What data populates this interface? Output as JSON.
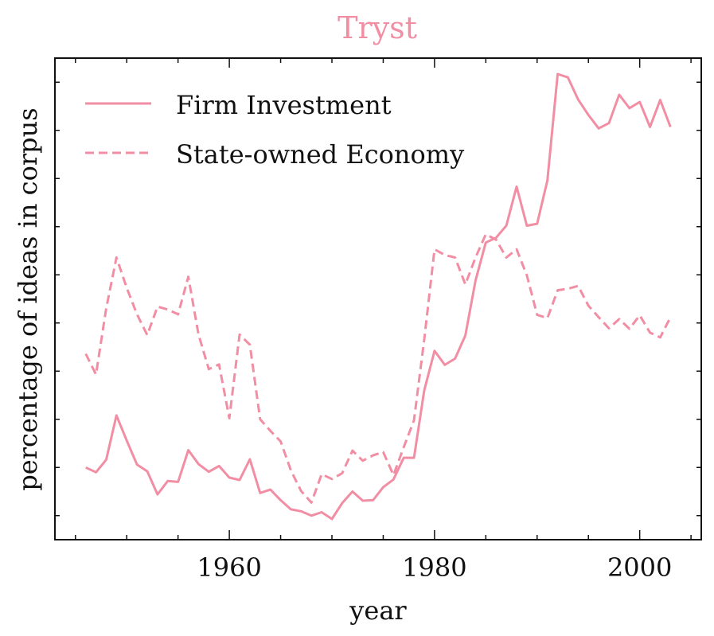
{
  "chart_data": {
    "type": "line",
    "title": "Tryst",
    "xlabel": "year",
    "ylabel": "percentage of ideas in corpus",
    "xlim": [
      1943,
      2006
    ],
    "ylim": [
      0,
      100
    ],
    "x_ticks": [
      1960,
      1980,
      2000
    ],
    "y_ticks_labeled": false,
    "grid": false,
    "legend_position": "top-left",
    "color": "#f28ea4",
    "x": [
      1946,
      1947,
      1948,
      1949,
      1950,
      1951,
      1952,
      1953,
      1954,
      1955,
      1956,
      1957,
      1958,
      1959,
      1960,
      1961,
      1962,
      1963,
      1964,
      1965,
      1966,
      1967,
      1968,
      1969,
      1970,
      1971,
      1972,
      1973,
      1974,
      1975,
      1976,
      1977,
      1978,
      1979,
      1980,
      1981,
      1982,
      1983,
      1984,
      1985,
      1986,
      1987,
      1988,
      1989,
      1990,
      1991,
      1992,
      1993,
      1994,
      1995,
      1996,
      1997,
      1998,
      1999,
      2000,
      2001,
      2002,
      2003
    ],
    "series": [
      {
        "name": "Firm Investment",
        "style": "solid",
        "values": [
          15.0,
          14.0,
          16.6,
          25.8,
          20.6,
          15.6,
          14.2,
          9.4,
          12.2,
          12.0,
          18.6,
          15.7,
          14.1,
          15.3,
          12.9,
          12.4,
          16.7,
          9.7,
          10.4,
          8.2,
          6.3,
          5.9,
          5.0,
          5.7,
          4.3,
          7.6,
          10.0,
          8.1,
          8.2,
          10.9,
          12.5,
          17.0,
          17.0,
          31.0,
          39.2,
          36.3,
          37.6,
          42.4,
          53.8,
          61.7,
          62.7,
          65.2,
          73.3,
          65.2,
          65.6,
          74.6,
          96.7,
          96.0,
          91.4,
          88.2,
          85.4,
          86.5,
          92.4,
          89.6,
          90.9,
          85.7,
          91.3,
          85.7
        ]
      },
      {
        "name": "State-owned Economy",
        "style": "dashed",
        "values": [
          38.6,
          34.3,
          48.0,
          58.6,
          52.3,
          46.8,
          42.5,
          48.4,
          47.8,
          46.8,
          54.6,
          42.6,
          35.4,
          36.4,
          25.2,
          42.6,
          40.5,
          25.0,
          22.6,
          20.4,
          14.4,
          10.1,
          7.7,
          13.6,
          12.6,
          13.8,
          18.5,
          16.4,
          17.5,
          18.2,
          13.4,
          19.2,
          24.8,
          41.6,
          60.3,
          59.1,
          58.6,
          53.0,
          58.6,
          63.4,
          62.3,
          58.6,
          60.3,
          54.9,
          46.7,
          46.0,
          51.8,
          52.1,
          52.7,
          48.6,
          46.2,
          43.9,
          45.8,
          43.8,
          46.6,
          43.0,
          42.0,
          46.2
        ]
      }
    ]
  }
}
